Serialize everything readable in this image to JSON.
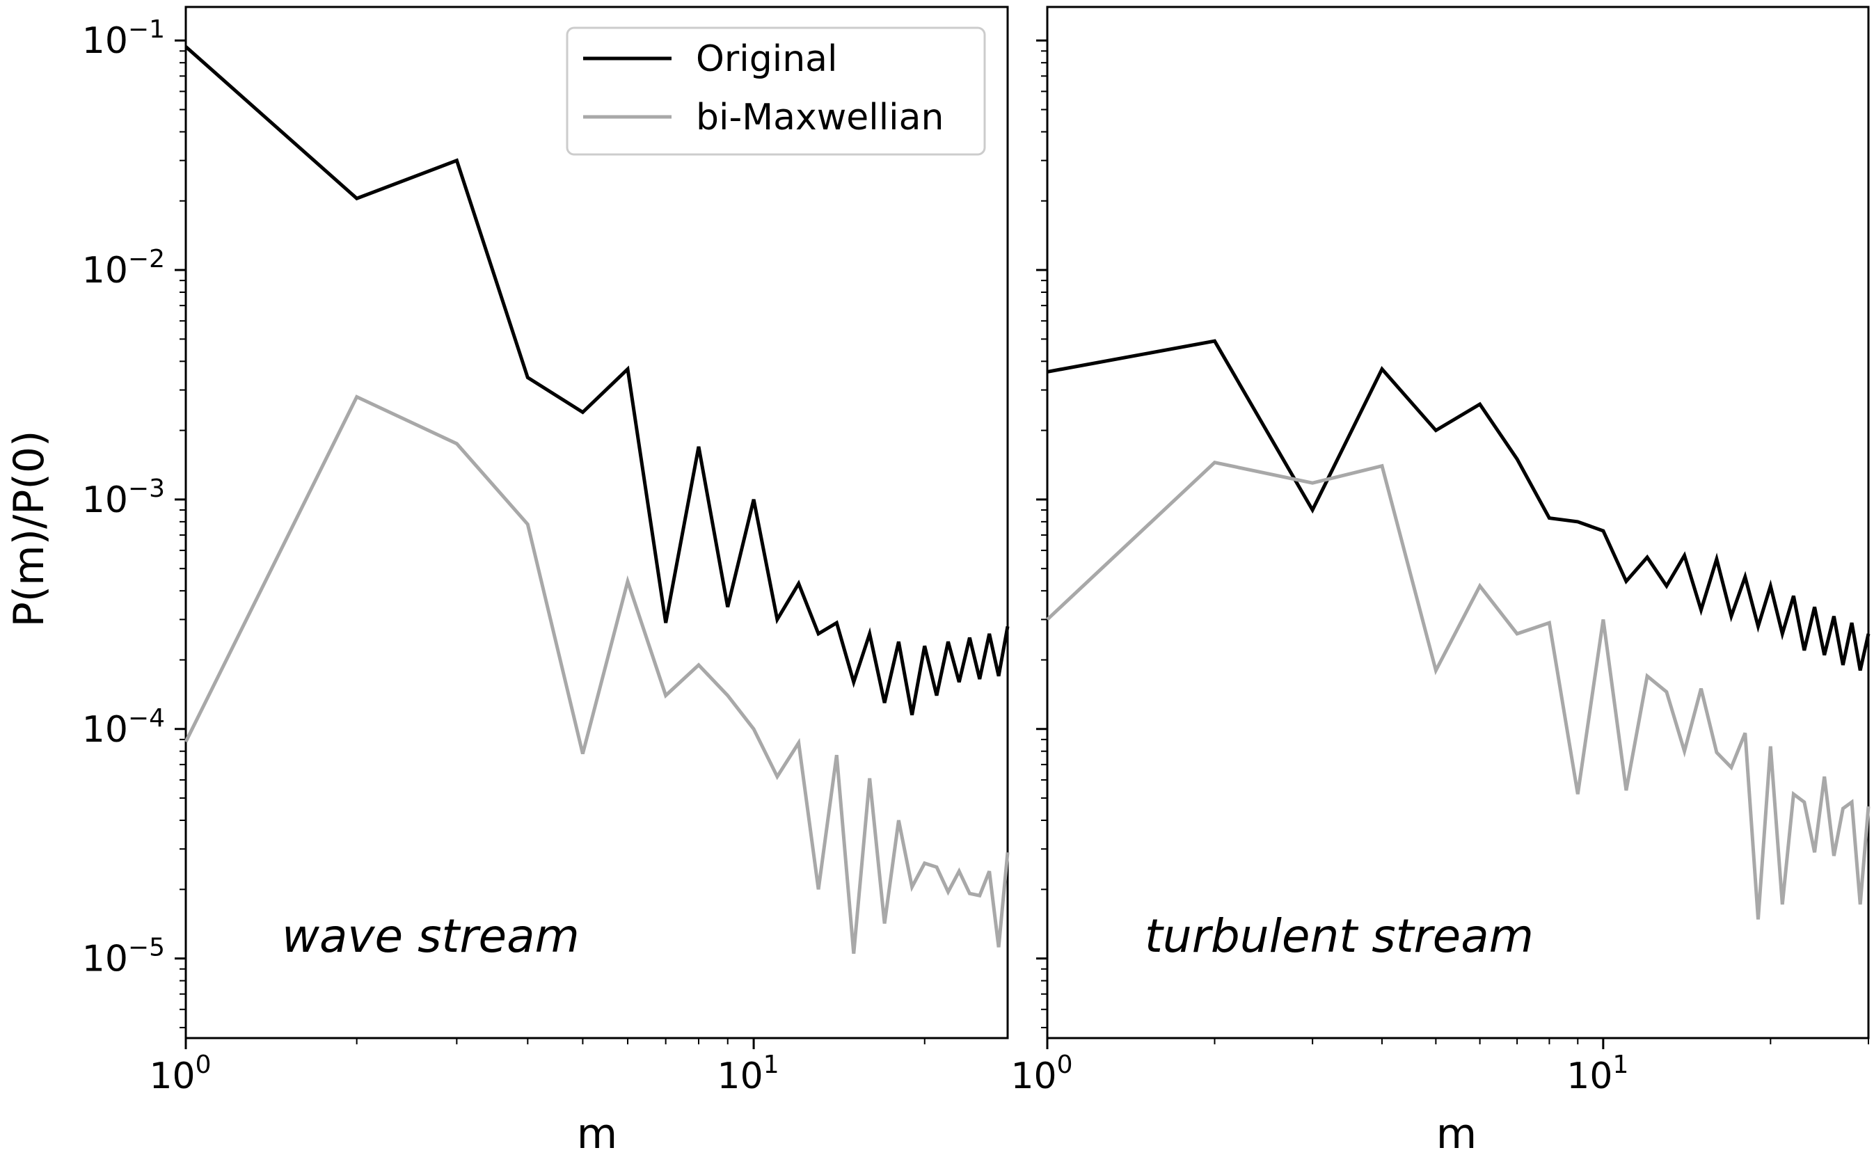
{
  "figure": {
    "ylabel": "P(m)/P(0)",
    "legend": {
      "placement": "top-right of left panel",
      "entries": [
        {
          "label": "Original",
          "color": "#000000"
        },
        {
          "label": "bi-Maxwellian",
          "color": "#a8a8a8"
        }
      ]
    }
  },
  "chart_data": [
    {
      "type": "line",
      "annotation": "wave stream",
      "xlabel": "m",
      "ylabel": "P(m)/P(0)",
      "xscale": "log",
      "yscale": "log",
      "xlim": [
        1,
        28
      ],
      "ylim": [
        4.5e-06,
        0.14
      ],
      "x_ticks": [
        {
          "base": "10",
          "exp": "0",
          "value": 1
        },
        {
          "base": "10",
          "exp": "1",
          "value": 10
        }
      ],
      "y_ticks": [
        {
          "base": "10",
          "exp": "−1",
          "value": 0.1
        },
        {
          "base": "10",
          "exp": "−2",
          "value": 0.01
        },
        {
          "base": "10",
          "exp": "−3",
          "value": 0.001
        },
        {
          "base": "10",
          "exp": "−4",
          "value": 0.0001
        },
        {
          "base": "10",
          "exp": "−5",
          "value": 1e-05
        }
      ],
      "grid": false,
      "x": [
        1,
        2,
        3,
        4,
        5,
        6,
        7,
        8,
        9,
        10,
        11,
        12,
        13,
        14,
        15,
        16,
        17,
        18,
        19,
        20,
        21,
        22,
        23,
        24,
        25,
        26,
        27,
        28
      ],
      "series": [
        {
          "name": "Original",
          "color": "#000000",
          "values": [
            0.094,
            0.0205,
            0.03,
            0.0034,
            0.0024,
            0.0037,
            0.00029,
            0.0017,
            0.00034,
            0.001,
            0.0003,
            0.00043,
            0.00026,
            0.00029,
            0.00016,
            0.00026,
            0.00013,
            0.00024,
            0.000115,
            0.00023,
            0.00014,
            0.00024,
            0.00016,
            0.00025,
            0.000165,
            0.00026,
            0.00017,
            0.00028
          ]
        },
        {
          "name": "bi-Maxwellian",
          "color": "#a8a8a8",
          "values": [
            8.8e-05,
            0.0028,
            0.00175,
            0.00078,
            7.8e-05,
            0.00044,
            0.00014,
            0.00019,
            0.00014,
            0.0001,
            6.2e-05,
            8.7e-05,
            2e-05,
            7.7e-05,
            1.05e-05,
            6.1e-05,
            1.42e-05,
            4e-05,
            2.05e-05,
            2.6e-05,
            2.5e-05,
            1.95e-05,
            2.4e-05,
            1.92e-05,
            1.88e-05,
            2.4e-05,
            1.12e-05,
            2.9e-05
          ]
        }
      ]
    },
    {
      "type": "line",
      "annotation": "turbulent stream",
      "xlabel": "m",
      "xscale": "log",
      "yscale": "log",
      "xlim": [
        1,
        30
      ],
      "ylim": [
        4.5e-06,
        0.14
      ],
      "x_ticks": [
        {
          "base": "10",
          "exp": "0",
          "value": 1
        },
        {
          "base": "10",
          "exp": "1",
          "value": 10
        }
      ],
      "grid": false,
      "x": [
        1,
        2,
        3,
        4,
        5,
        6,
        7,
        8,
        9,
        10,
        11,
        12,
        13,
        14,
        15,
        16,
        17,
        18,
        19,
        20,
        21,
        22,
        23,
        24,
        25,
        26,
        27,
        28,
        29,
        30
      ],
      "series": [
        {
          "name": "Original",
          "color": "#000000",
          "values": [
            0.0036,
            0.0049,
            0.0009,
            0.0037,
            0.002,
            0.0026,
            0.0015,
            0.00083,
            0.0008,
            0.00073,
            0.00044,
            0.00056,
            0.00042,
            0.00057,
            0.00033,
            0.00055,
            0.00031,
            0.00046,
            0.00028,
            0.00042,
            0.00026,
            0.00038,
            0.00022,
            0.00034,
            0.00021,
            0.00031,
            0.00019,
            0.00029,
            0.00018,
            0.00026
          ]
        },
        {
          "name": "bi-Maxwellian",
          "color": "#a8a8a8",
          "values": [
            0.0003,
            0.00145,
            0.00118,
            0.0014,
            0.00018,
            0.00042,
            0.00026,
            0.00029,
            5.2e-05,
            0.0003,
            5.4e-05,
            0.00017,
            0.000145,
            8e-05,
            0.00015,
            7.9e-05,
            6.8e-05,
            9.6e-05,
            1.48e-05,
            8.4e-05,
            1.72e-05,
            5.2e-05,
            4.8e-05,
            2.9e-05,
            6.2e-05,
            2.8e-05,
            4.5e-05,
            4.8e-05,
            1.72e-05,
            4.6e-05
          ]
        }
      ]
    }
  ]
}
